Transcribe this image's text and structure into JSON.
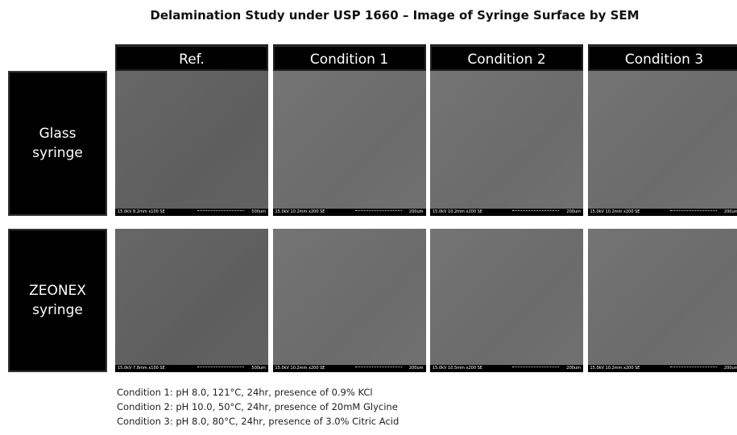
{
  "title": "Delamination Study under USP 1660 – Image of Syringe Surface by SEM",
  "columns": [
    "Ref.",
    "Condition 1",
    "Condition 2",
    "Condition 3"
  ],
  "rows": [
    {
      "label": "Glass syringe",
      "images": [
        {
          "info": "15.0kV 8.2mm x100 SE",
          "scale": "500um"
        },
        {
          "info": "15.0kV 10.2mm x200 SE",
          "scale": "200um"
        },
        {
          "info": "15.0kV 10.2mm x200 SE",
          "scale": "200um"
        },
        {
          "info": "15.0kV 10.2mm x200 SE",
          "scale": "200um"
        }
      ]
    },
    {
      "label": "ZEONEX syringe",
      "images": [
        {
          "info": "15.0kV 7.8mm x100 SE",
          "scale": "500um"
        },
        {
          "info": "15.0kV 10.2mm x200 SE",
          "scale": "200um"
        },
        {
          "info": "15.0kV 10.5mm x200 SE",
          "scale": "200um"
        },
        {
          "info": "15.0kV 10.2mm x200 SE",
          "scale": "200um"
        }
      ]
    }
  ],
  "notes": [
    "Condition 1:  pH 8.0, 121°C, 24hr, presence of 0.9% KCl",
    "Condition 2:  pH 10.0, 50°C, 24hr, presence of 20mM Glycine",
    "Condition 3:  pH 8.0, 80°C, 24hr, presence of 3.0% Citric Acid"
  ]
}
